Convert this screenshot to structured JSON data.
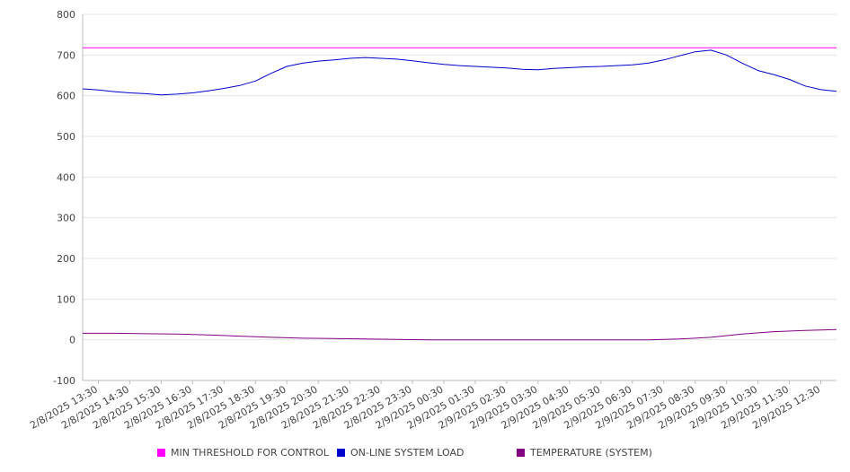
{
  "chart_data": {
    "type": "line",
    "title": "",
    "xlabel": "",
    "ylabel": "",
    "ylim": [
      -100,
      800
    ],
    "y_ticks": [
      800,
      700,
      600,
      500,
      400,
      300,
      200,
      100,
      0,
      -100
    ],
    "x_range": [
      "2/8/2025 13:00",
      "2/9/2025 13:00"
    ],
    "x_tick_labels": [
      "2/8/2025 13:30",
      "2/8/2025 14:30",
      "2/8/2025 15:30",
      "2/8/2025 16:30",
      "2/8/2025 17:30",
      "2/8/2025 18:30",
      "2/8/2025 19:30",
      "2/8/2025 20:30",
      "2/8/2025 21:30",
      "2/8/2025 22:30",
      "2/8/2025 23:30",
      "2/9/2025 00:30",
      "2/9/2025 01:30",
      "2/9/2025 02:30",
      "2/9/2025 03:30",
      "2/9/2025 04:30",
      "2/9/2025 05:30",
      "2/9/2025 06:30",
      "2/9/2025 07:30",
      "2/9/2025 08:30",
      "2/9/2025 09:30",
      "2/9/2025 10:30",
      "2/9/2025 11:30",
      "2/9/2025 12:30"
    ],
    "grid": "horizontal",
    "legend_position": "bottom",
    "series": [
      {
        "name": "MIN THRESHOLD FOR CONTROL",
        "color": "#ff00ff",
        "x": [
          "2/8/2025 13:00",
          "2/9/2025 13:00"
        ],
        "y": [
          718,
          718
        ]
      },
      {
        "name": "ON-LINE SYSTEM LOAD",
        "color": "#0000cc",
        "x": [
          "2/8/2025 13:00",
          "2/8/2025 13:30",
          "2/8/2025 14:00",
          "2/8/2025 14:30",
          "2/8/2025 15:00",
          "2/8/2025 15:30",
          "2/8/2025 16:00",
          "2/8/2025 16:30",
          "2/8/2025 17:00",
          "2/8/2025 17:30",
          "2/8/2025 18:00",
          "2/8/2025 18:30",
          "2/8/2025 19:00",
          "2/8/2025 19:30",
          "2/8/2025 20:00",
          "2/8/2025 20:30",
          "2/8/2025 21:00",
          "2/8/2025 21:30",
          "2/8/2025 22:00",
          "2/8/2025 22:30",
          "2/8/2025 23:00",
          "2/8/2025 23:30",
          "2/9/2025 00:00",
          "2/9/2025 00:30",
          "2/9/2025 01:00",
          "2/9/2025 01:30",
          "2/9/2025 02:00",
          "2/9/2025 02:30",
          "2/9/2025 03:00",
          "2/9/2025 03:30",
          "2/9/2025 04:00",
          "2/9/2025 04:30",
          "2/9/2025 05:00",
          "2/9/2025 05:30",
          "2/9/2025 06:00",
          "2/9/2025 06:30",
          "2/9/2025 07:00",
          "2/9/2025 07:30",
          "2/9/2025 08:00",
          "2/9/2025 08:30",
          "2/9/2025 09:00",
          "2/9/2025 09:30",
          "2/9/2025 10:00",
          "2/9/2025 10:30",
          "2/9/2025 11:00",
          "2/9/2025 11:30",
          "2/9/2025 12:00",
          "2/9/2025 12:30",
          "2/9/2025 13:00"
        ],
        "y": [
          617,
          614,
          610,
          607,
          605,
          602,
          604,
          607,
          612,
          618,
          625,
          636,
          655,
          672,
          680,
          685,
          688,
          692,
          694,
          692,
          690,
          686,
          681,
          677,
          674,
          672,
          670,
          668,
          665,
          664,
          667,
          669,
          671,
          672,
          674,
          676,
          680,
          688,
          698,
          708,
          712,
          700,
          680,
          662,
          652,
          640,
          624,
          615,
          611
        ]
      },
      {
        "name": "TEMPERATURE (SYSTEM)",
        "color": "#800080",
        "x": [
          "2/8/2025 13:00",
          "2/8/2025 14:00",
          "2/8/2025 15:00",
          "2/8/2025 16:00",
          "2/8/2025 17:00",
          "2/8/2025 18:00",
          "2/8/2025 19:00",
          "2/8/2025 20:00",
          "2/8/2025 21:00",
          "2/8/2025 22:00",
          "2/8/2025 23:00",
          "2/9/2025 00:00",
          "2/9/2025 01:00",
          "2/9/2025 02:00",
          "2/9/2025 03:00",
          "2/9/2025 04:00",
          "2/9/2025 05:00",
          "2/9/2025 06:00",
          "2/9/2025 07:00",
          "2/9/2025 08:00",
          "2/9/2025 09:00",
          "2/9/2025 10:00",
          "2/9/2025 11:00",
          "2/9/2025 12:00",
          "2/9/2025 13:00"
        ],
        "y": [
          16,
          16,
          15,
          14,
          12,
          9,
          6,
          4,
          3,
          2,
          1,
          0,
          0,
          0,
          0,
          0,
          0,
          0,
          0,
          2,
          6,
          14,
          20,
          23,
          25
        ]
      }
    ]
  }
}
